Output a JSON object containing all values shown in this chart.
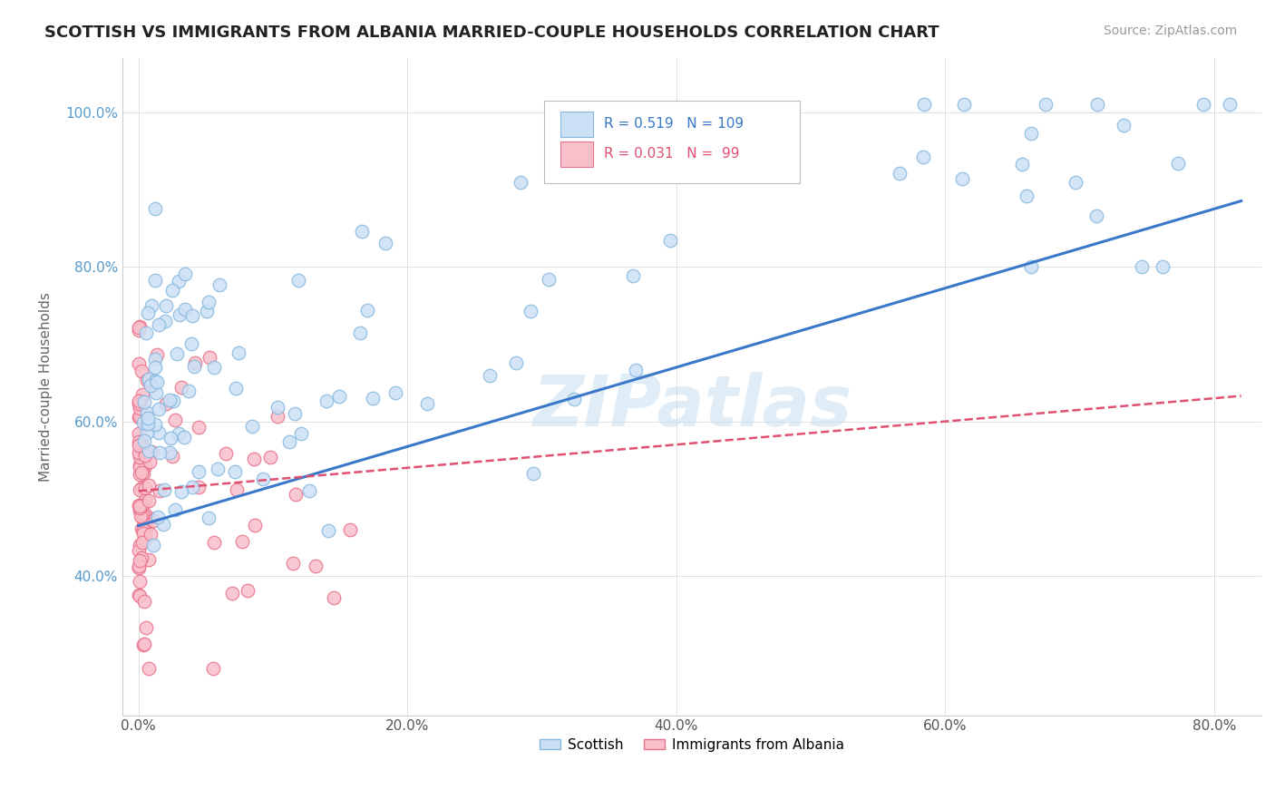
{
  "title": "SCOTTISH VS IMMIGRANTS FROM ALBANIA MARRIED-COUPLE HOUSEHOLDS CORRELATION CHART",
  "source": "Source: ZipAtlas.com",
  "ylabel": "Married-couple Households",
  "scottish_R": 0.519,
  "scottish_N": 109,
  "albania_R": 0.031,
  "albania_N": 99,
  "scottish_color": "#cce0f5",
  "scottish_edge": "#85b8e0",
  "albania_color": "#f9c0cc",
  "albania_edge": "#e8708a",
  "trend_scottish_color": "#3a78c9",
  "trend_albania_color": "#e05070",
  "watermark": "ZIPatlas",
  "legend_label_scottish": "Scottish",
  "legend_label_albania": "Immigrants from Albania",
  "x_ticks": [
    0.0,
    0.2,
    0.4,
    0.6,
    0.8
  ],
  "x_tick_labels": [
    "0.0%",
    "20.0%",
    "40.0%",
    "60.0%",
    "80.0%"
  ],
  "y_ticks": [
    0.4,
    0.6,
    0.8,
    1.0
  ],
  "y_tick_labels": [
    "40.0%",
    "60.0%",
    "80.0%",
    "100.0%"
  ],
  "xlim": [
    -0.012,
    0.835
  ],
  "ylim": [
    0.22,
    1.07
  ]
}
